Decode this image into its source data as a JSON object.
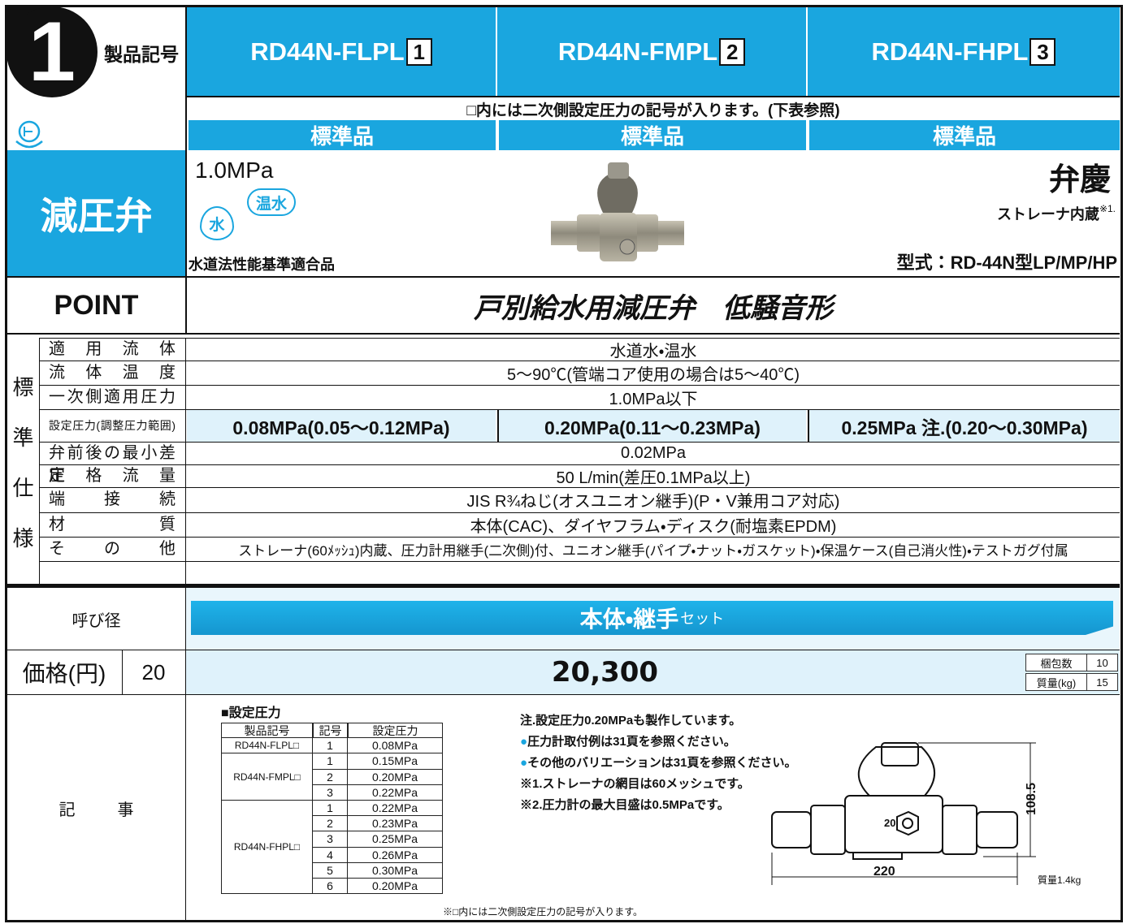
{
  "header": {
    "badge": "1",
    "label": "製品記号",
    "models": [
      {
        "name": "RD44N-FLPL",
        "code": "1"
      },
      {
        "name": "RD44N-FMPL",
        "code": "2"
      },
      {
        "name": "RD44N-FHPL",
        "code": "3"
      }
    ]
  },
  "note_row": "□内には二次側設定圧力の記号が入ります。(下表参照)",
  "grade": [
    "標準品",
    "標準品",
    "標準品"
  ],
  "category": "減圧弁",
  "product": {
    "pressure": "1.0MPa",
    "icon_water": "水",
    "icon_hot": "温水",
    "certification": "水道法性能基準適合品",
    "brand": "弁慶",
    "strainer": "ストレーナ内蔵",
    "strainer_note": "※1.",
    "model_type": "型式：RD-44N型LP/MP/HP"
  },
  "point": {
    "label": "POINT",
    "text": "戸別給水用減圧弁　低騒音形"
  },
  "spec": {
    "label": [
      "標",
      "準",
      "仕",
      "様"
    ],
    "rows": [
      {
        "name": "適用流体",
        "value": "水道水・温水"
      },
      {
        "name": "流体温度",
        "value": "5～90℃(管端コア使用の場合は5～40℃)"
      },
      {
        "name": "一次側適用圧力",
        "value": "1.0MPa以下"
      },
      {
        "name": "設定圧力(調整圧力範囲)",
        "values": [
          "0.08MPa(0.05～0.12MPa)",
          "0.20MPa(0.11～0.23MPa)",
          "0.25MPa 注.(0.20～0.30MPa)"
        ]
      },
      {
        "name": "弁前後の最小差圧",
        "value": "0.02MPa"
      },
      {
        "name": "定格流量",
        "value": "50 L/min(差圧0.1MPa以上)"
      },
      {
        "name": "端接続",
        "value": "JIS R¾ねじ(オスユニオン継手)(P・V兼用コア対応)"
      },
      {
        "name": "材質",
        "value": "本体(CAC)、ダイヤフラム・ディスク(耐塩素EPDM)"
      },
      {
        "name": "その他",
        "value": "ストレーナ(60ﾒｯｼｭ)内蔵、圧力計用継手(二次側)付、ユニオン継手(パイプ・ナット・ガスケット)・保温ケース(自己消火性)・テストガグ付属"
      }
    ]
  },
  "price": {
    "nominal_label": "呼び径",
    "set_label": "本体・継手",
    "set_suffix": "セット",
    "price_label": "価格(円)",
    "size": "20",
    "price": "20,300",
    "packing": [
      {
        "label": "梱包数",
        "value": "10"
      },
      {
        "label": "質量(kg)",
        "value": "15"
      }
    ]
  },
  "remarks": {
    "label": "記事",
    "table_title": "■設定圧力",
    "headers": [
      "製品記号",
      "記号",
      "設定圧力"
    ],
    "groups": [
      {
        "product": "RD44N-FLPL□",
        "rows": [
          [
            "1",
            "0.08MPa"
          ]
        ]
      },
      {
        "product": "RD44N-FMPL□",
        "rows": [
          [
            "1",
            "0.15MPa"
          ],
          [
            "2",
            "0.20MPa"
          ],
          [
            "3",
            "0.22MPa"
          ]
        ]
      },
      {
        "product": "RD44N-FHPL□",
        "rows": [
          [
            "1",
            "0.22MPa"
          ],
          [
            "2",
            "0.23MPa"
          ],
          [
            "3",
            "0.25MPa"
          ],
          [
            "4",
            "0.26MPa"
          ],
          [
            "5",
            "0.30MPa"
          ],
          [
            "6",
            "0.20MPa"
          ]
        ]
      }
    ],
    "footnote": "※□内には二次側設定圧力の記号が入ります。",
    "notes": [
      {
        "bullet": "",
        "text": "注.設定圧力0.20MPaも製作しています。"
      },
      {
        "bullet": "●",
        "text": "圧力計取付例は31頁を参照ください。"
      },
      {
        "bullet": "●",
        "text": "その他のバリエーションは31頁を参照ください。"
      },
      {
        "bullet": "",
        "text": "※1.ストレーナの網目は60メッシュです。"
      },
      {
        "bullet": "",
        "text": "※2.圧力計の最大目盛は0.5MPaです。"
      }
    ],
    "diagram": {
      "height": "108.5",
      "width": "220",
      "weight": "質量1.4kg",
      "marking": "20"
    }
  }
}
